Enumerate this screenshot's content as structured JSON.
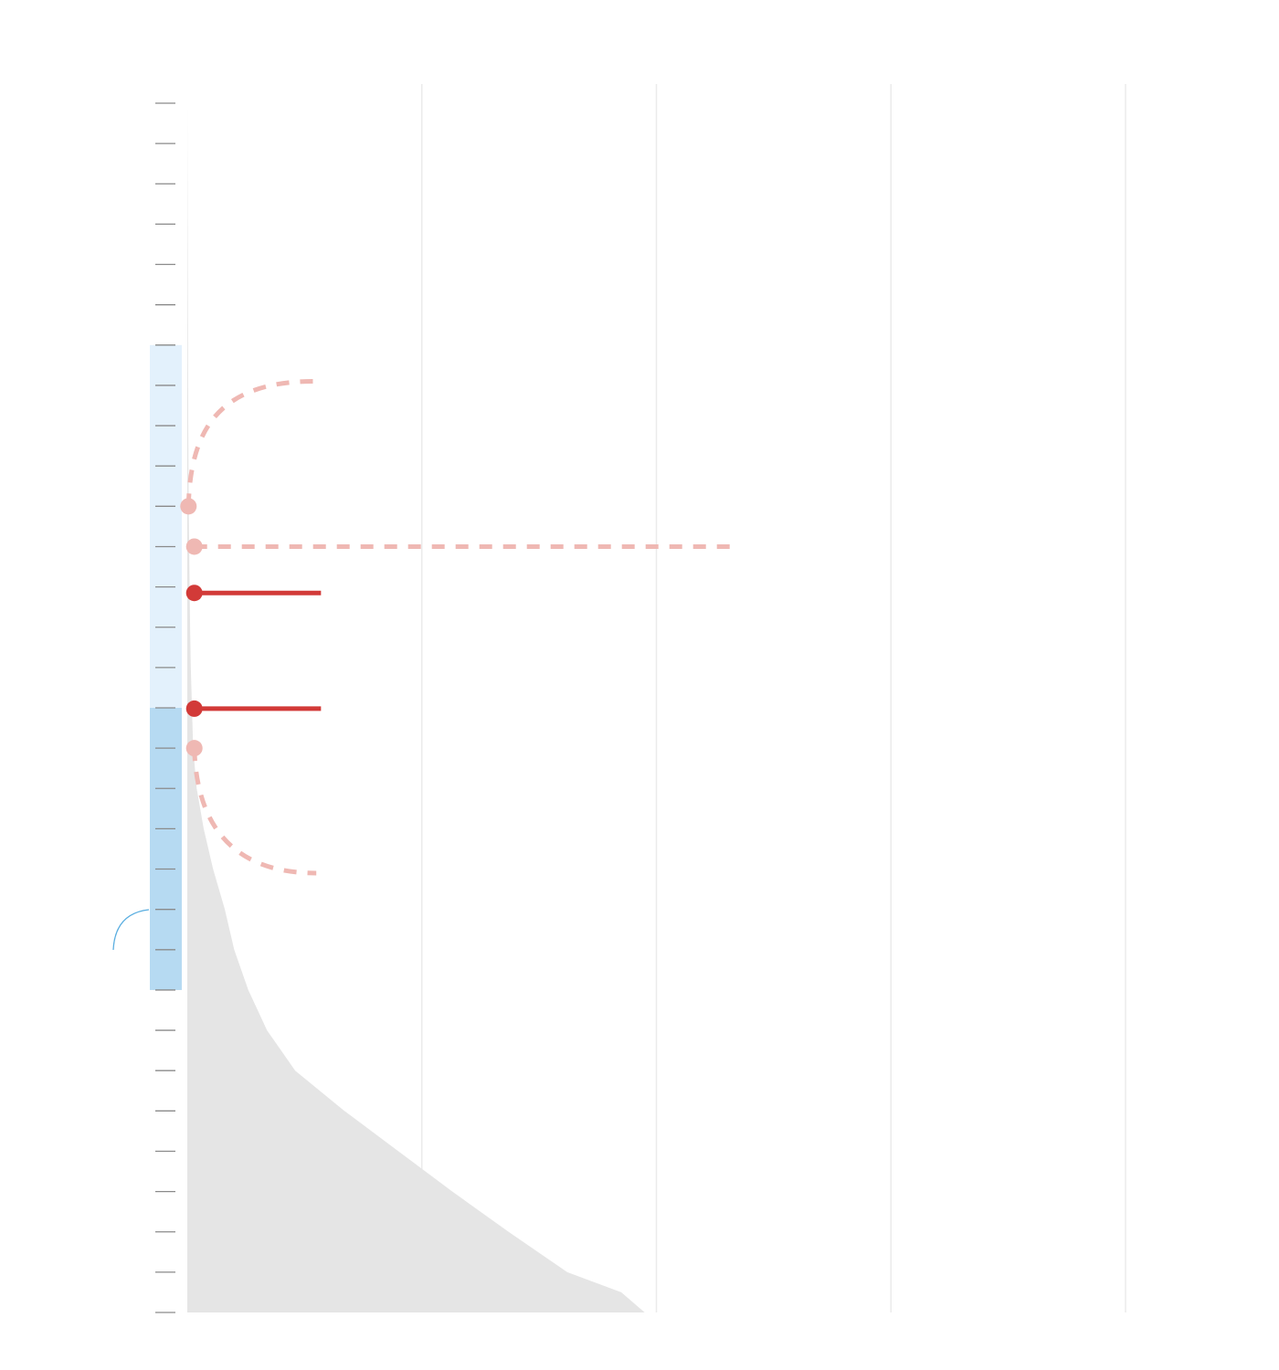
{
  "chart_data": {
    "type": "area",
    "title": "",
    "xlabel": "",
    "ylabel": "",
    "grid": true,
    "legend": "none",
    "xlim": [
      0,
      4.2
    ],
    "ylim": [
      0,
      30
    ],
    "x_gridlines": [
      0,
      1,
      2,
      3,
      4
    ],
    "y_ticks": [
      0,
      1,
      2,
      3,
      4,
      5,
      6,
      7,
      8,
      9,
      10,
      11,
      12,
      13,
      14,
      15,
      16,
      17,
      18,
      19,
      20,
      21,
      22,
      23,
      24,
      25,
      26,
      27,
      28,
      29,
      30
    ],
    "distribution": {
      "name": "",
      "points": [
        {
          "y": 0,
          "x": 1.95
        },
        {
          "y": 0.5,
          "x": 1.85
        },
        {
          "y": 1,
          "x": 1.62
        },
        {
          "y": 2,
          "x": 1.37
        },
        {
          "y": 3,
          "x": 1.13
        },
        {
          "y": 4,
          "x": 0.9
        },
        {
          "y": 5,
          "x": 0.67
        },
        {
          "y": 6,
          "x": 0.46
        },
        {
          "y": 7,
          "x": 0.34
        },
        {
          "y": 8,
          "x": 0.26
        },
        {
          "y": 9,
          "x": 0.2
        },
        {
          "y": 10,
          "x": 0.16
        },
        {
          "y": 11,
          "x": 0.11
        },
        {
          "y": 12,
          "x": 0.07
        },
        {
          "y": 13,
          "x": 0.04
        },
        {
          "y": 14,
          "x": 0.025
        },
        {
          "y": 15,
          "x": 0.02
        },
        {
          "y": 16,
          "x": 0.015
        },
        {
          "y": 17,
          "x": 0.012
        },
        {
          "y": 18,
          "x": 0.01
        },
        {
          "y": 19,
          "x": 0.008
        },
        {
          "y": 20,
          "x": 0.006
        },
        {
          "y": 22,
          "x": 0.004
        },
        {
          "y": 24,
          "x": 0.003
        },
        {
          "y": 26,
          "x": 0.002
        },
        {
          "y": 28,
          "x": 0.001
        },
        {
          "y": 30,
          "x": 0.0
        }
      ],
      "color": "#e5e5e5"
    },
    "bands": [
      {
        "y_from": 8,
        "y_to": 15,
        "color": "#b6daf2"
      },
      {
        "y_from": 15,
        "y_to": 24,
        "color": "#e3f1fc"
      }
    ],
    "markers": [
      {
        "y": 20,
        "x": 0.005,
        "color": "#efb8b3",
        "style": "dashed-arc",
        "arc_end_x": 0.54,
        "arc_end_y": 23.1
      },
      {
        "y": 19,
        "x": 0.03,
        "color": "#efb8b3",
        "style": "dashed-line",
        "line_end_x": 2.35
      },
      {
        "y": 17.85,
        "x": 0.03,
        "color": "#d23a38",
        "style": "solid-line",
        "line_end_x": 0.57
      },
      {
        "y": 14.98,
        "x": 0.03,
        "color": "#d23a38",
        "style": "solid-line",
        "line_end_x": 0.57
      },
      {
        "y": 14,
        "x": 0.03,
        "color": "#efb8b3",
        "style": "dashed-arc",
        "arc_end_x": 0.55,
        "arc_end_y": 10.9
      }
    ],
    "colors": {
      "gridline": "#ebebeb",
      "tick": "#8a8a8a",
      "annotation": "#5aaee0"
    }
  }
}
